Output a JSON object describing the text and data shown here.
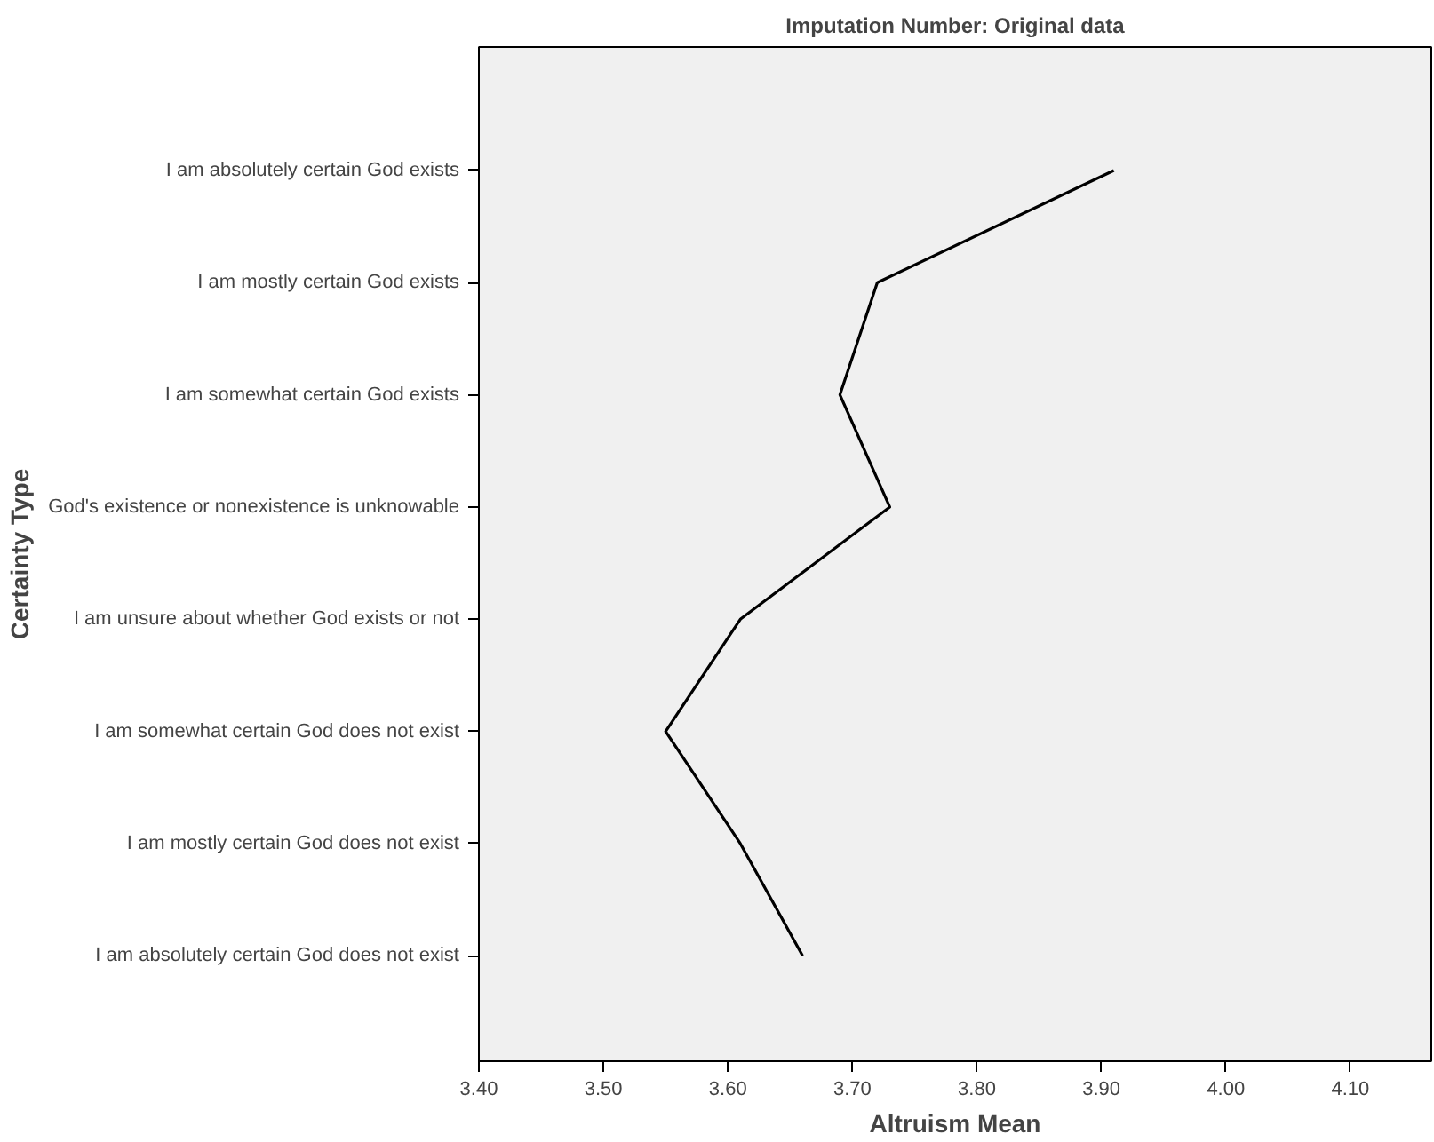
{
  "chart_data": {
    "type": "line",
    "title": "Imputation Number: Original data",
    "xlabel": "Altruism Mean",
    "ylabel": "Certainty Type",
    "orientation": "horizontal",
    "categories": [
      "I am absolutely certain God exists",
      "I am mostly certain God exists",
      "I am somewhat certain God exists",
      "God's existence or nonexistence is unknowable",
      "I am unsure about whether God exists or not",
      "I am somewhat certain God does not exist",
      "I am mostly certain God does not exist",
      "I am absolutely certain God does not exist"
    ],
    "series": [
      {
        "color": "#000000",
        "values": [
          3.91,
          3.72,
          3.69,
          3.73,
          3.61,
          3.55,
          3.61,
          3.66
        ]
      }
    ],
    "xlim": [
      3.4,
      4.165
    ],
    "xticks": [
      {
        "value": 3.4,
        "label": "3.40"
      },
      {
        "value": 3.5,
        "label": "3.50"
      },
      {
        "value": 3.6,
        "label": "3.60"
      },
      {
        "value": 3.7,
        "label": "3.70"
      },
      {
        "value": 3.8,
        "label": "3.80"
      },
      {
        "value": 3.9,
        "label": "3.90"
      },
      {
        "value": 4.0,
        "label": "4.00"
      },
      {
        "value": 4.1,
        "label": "4.10"
      }
    ],
    "grid": false,
    "marker": "none",
    "line_style": "solid"
  }
}
